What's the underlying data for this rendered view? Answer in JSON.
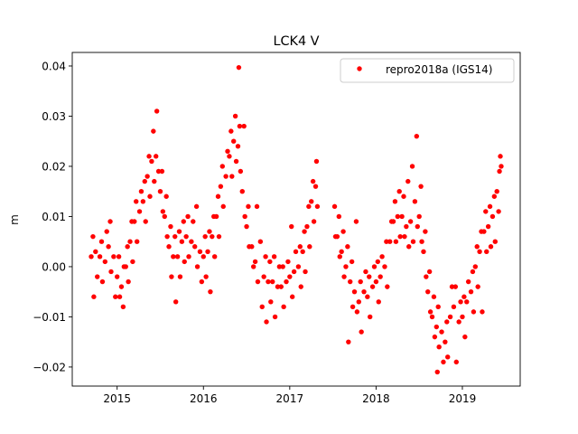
{
  "chart_data": {
    "type": "scatter",
    "title": "LCK4 V",
    "xlabel": "",
    "ylabel": "m",
    "xlim": [
      2014.48,
      2019.67
    ],
    "ylim": [
      -0.0238,
      0.0427
    ],
    "xticks": [
      2015,
      2016,
      2017,
      2018,
      2019
    ],
    "xtick_labels": [
      "2015",
      "2016",
      "2017",
      "2018",
      "2019"
    ],
    "yticks": [
      -0.02,
      -0.01,
      0.0,
      0.01,
      0.02,
      0.03,
      0.04
    ],
    "ytick_labels": [
      "−0.02",
      "−0.01",
      "0.00",
      "0.01",
      "0.02",
      "0.03",
      "0.04"
    ],
    "grid": false,
    "legend_position": "top-right",
    "series": [
      {
        "name": "repro2018a (IGS14)",
        "color": "#ff0000",
        "points": [
          [
            2014.7,
            0.002
          ],
          [
            2014.72,
            0.006
          ],
          [
            2014.73,
            -0.006
          ],
          [
            2014.75,
            0.003
          ],
          [
            2014.77,
            -0.002
          ],
          [
            2014.8,
            0.002
          ],
          [
            2014.82,
            0.005
          ],
          [
            2014.83,
            -0.003
          ],
          [
            2014.86,
            0.001
          ],
          [
            2014.88,
            0.007
          ],
          [
            2014.9,
            0.004
          ],
          [
            2014.92,
            0.009
          ],
          [
            2014.93,
            -0.001
          ],
          [
            2014.96,
            0.002
          ],
          [
            2014.98,
            -0.006
          ],
          [
            2015.0,
            -0.002
          ],
          [
            2015.02,
            0.002
          ],
          [
            2015.03,
            -0.006
          ],
          [
            2015.05,
            -0.004
          ],
          [
            2015.07,
            -0.008
          ],
          [
            2015.08,
            0.0
          ],
          [
            2015.1,
            0.0
          ],
          [
            2015.12,
            0.004
          ],
          [
            2015.13,
            -0.003
          ],
          [
            2015.15,
            0.005
          ],
          [
            2015.17,
            0.009
          ],
          [
            2015.18,
            0.001
          ],
          [
            2015.2,
            0.009
          ],
          [
            2015.22,
            0.013
          ],
          [
            2015.23,
            0.005
          ],
          [
            2015.26,
            0.011
          ],
          [
            2015.28,
            0.015
          ],
          [
            2015.3,
            0.013
          ],
          [
            2015.32,
            0.017
          ],
          [
            2015.33,
            0.009
          ],
          [
            2015.35,
            0.018
          ],
          [
            2015.37,
            0.022
          ],
          [
            2015.38,
            0.014
          ],
          [
            2015.4,
            0.021
          ],
          [
            2015.42,
            0.027
          ],
          [
            2015.43,
            0.017
          ],
          [
            2015.45,
            0.022
          ],
          [
            2015.46,
            0.031
          ],
          [
            2015.48,
            0.019
          ],
          [
            2015.5,
            0.015
          ],
          [
            2015.52,
            0.019
          ],
          [
            2015.53,
            0.011
          ],
          [
            2015.55,
            0.01
          ],
          [
            2015.57,
            0.014
          ],
          [
            2015.58,
            0.006
          ],
          [
            2015.6,
            0.004
          ],
          [
            2015.62,
            0.008
          ],
          [
            2015.63,
            -0.002
          ],
          [
            2015.65,
            0.002
          ],
          [
            2015.67,
            0.006
          ],
          [
            2015.68,
            -0.007
          ],
          [
            2015.7,
            0.002
          ],
          [
            2015.72,
            0.007
          ],
          [
            2015.73,
            -0.002
          ],
          [
            2015.75,
            0.005
          ],
          [
            2015.77,
            0.009
          ],
          [
            2015.78,
            0.001
          ],
          [
            2015.8,
            0.006
          ],
          [
            2015.82,
            0.01
          ],
          [
            2015.83,
            0.002
          ],
          [
            2015.86,
            0.005
          ],
          [
            2015.88,
            0.009
          ],
          [
            2015.9,
            0.004
          ],
          [
            2015.92,
            0.012
          ],
          [
            2015.93,
            0.0
          ],
          [
            2015.96,
            0.003
          ],
          [
            2015.98,
            -0.003
          ],
          [
            2016.0,
            0.002
          ],
          [
            2016.02,
            0.006
          ],
          [
            2016.03,
            -0.002
          ],
          [
            2016.05,
            0.003
          ],
          [
            2016.07,
            0.007
          ],
          [
            2016.08,
            -0.005
          ],
          [
            2016.1,
            0.006
          ],
          [
            2016.12,
            0.01
          ],
          [
            2016.13,
            0.002
          ],
          [
            2016.15,
            0.01
          ],
          [
            2016.17,
            0.014
          ],
          [
            2016.18,
            0.006
          ],
          [
            2016.2,
            0.016
          ],
          [
            2016.22,
            0.02
          ],
          [
            2016.23,
            0.012
          ],
          [
            2016.26,
            0.018
          ],
          [
            2016.28,
            0.023
          ],
          [
            2016.3,
            0.022
          ],
          [
            2016.32,
            0.027
          ],
          [
            2016.33,
            0.018
          ],
          [
            2016.35,
            0.025
          ],
          [
            2016.37,
            0.03
          ],
          [
            2016.38,
            0.021
          ],
          [
            2016.4,
            0.024
          ],
          [
            2016.41,
            0.0397
          ],
          [
            2016.42,
            0.028
          ],
          [
            2016.43,
            0.019
          ],
          [
            2016.45,
            0.015
          ],
          [
            2016.47,
            0.028
          ],
          [
            2016.48,
            0.01
          ],
          [
            2016.5,
            0.008
          ],
          [
            2016.52,
            0.012
          ],
          [
            2016.53,
            0.004
          ],
          [
            2016.56,
            0.004
          ],
          [
            2016.58,
            0.0
          ],
          [
            2016.6,
            0.001
          ],
          [
            2016.62,
            0.012
          ],
          [
            2016.63,
            -0.003
          ],
          [
            2016.66,
            0.005
          ],
          [
            2016.68,
            -0.008
          ],
          [
            2016.7,
            -0.002
          ],
          [
            2016.72,
            0.002
          ],
          [
            2016.73,
            -0.011
          ],
          [
            2016.75,
            -0.003
          ],
          [
            2016.77,
            0.001
          ],
          [
            2016.78,
            -0.007
          ],
          [
            2016.8,
            -0.003
          ],
          [
            2016.82,
            0.002
          ],
          [
            2016.83,
            -0.01
          ],
          [
            2016.86,
            -0.004
          ],
          [
            2016.88,
            0.0
          ],
          [
            2016.9,
            -0.004
          ],
          [
            2016.92,
            0.0
          ],
          [
            2016.93,
            -0.008
          ],
          [
            2016.96,
            -0.003
          ],
          [
            2016.98,
            0.001
          ],
          [
            2017.0,
            -0.002
          ],
          [
            2017.02,
            0.008
          ],
          [
            2017.03,
            -0.006
          ],
          [
            2017.05,
            -0.001
          ],
          [
            2017.07,
            0.003
          ],
          [
            2017.1,
            0.0
          ],
          [
            2017.12,
            0.004
          ],
          [
            2017.13,
            -0.004
          ],
          [
            2017.15,
            0.003
          ],
          [
            2017.17,
            0.007
          ],
          [
            2017.18,
            -0.001
          ],
          [
            2017.2,
            0.008
          ],
          [
            2017.22,
            0.012
          ],
          [
            2017.23,
            0.004
          ],
          [
            2017.25,
            0.013
          ],
          [
            2017.27,
            0.017
          ],
          [
            2017.28,
            0.009
          ],
          [
            2017.3,
            0.016
          ],
          [
            2017.31,
            0.021
          ],
          [
            2017.32,
            0.012
          ],
          [
            2017.52,
            0.012
          ],
          [
            2017.53,
            0.006
          ],
          [
            2017.55,
            0.006
          ],
          [
            2017.57,
            0.01
          ],
          [
            2017.58,
            0.002
          ],
          [
            2017.6,
            0.003
          ],
          [
            2017.62,
            0.007
          ],
          [
            2017.63,
            -0.002
          ],
          [
            2017.65,
            0.0
          ],
          [
            2017.67,
            0.004
          ],
          [
            2017.68,
            -0.015
          ],
          [
            2017.7,
            -0.003
          ],
          [
            2017.72,
            0.001
          ],
          [
            2017.73,
            -0.008
          ],
          [
            2017.75,
            -0.005
          ],
          [
            2017.77,
            0.009
          ],
          [
            2017.78,
            -0.009
          ],
          [
            2017.8,
            -0.007
          ],
          [
            2017.82,
            -0.003
          ],
          [
            2017.83,
            -0.013
          ],
          [
            2017.86,
            -0.005
          ],
          [
            2017.88,
            -0.001
          ],
          [
            2017.9,
            -0.006
          ],
          [
            2017.92,
            -0.002
          ],
          [
            2017.93,
            -0.01
          ],
          [
            2017.96,
            -0.004
          ],
          [
            2017.98,
            0.0
          ],
          [
            2018.0,
            -0.003
          ],
          [
            2018.02,
            0.001
          ],
          [
            2018.03,
            -0.007
          ],
          [
            2018.05,
            -0.002
          ],
          [
            2018.07,
            0.002
          ],
          [
            2018.1,
            0.0
          ],
          [
            2018.12,
            0.005
          ],
          [
            2018.13,
            -0.004
          ],
          [
            2018.16,
            0.005
          ],
          [
            2018.18,
            0.009
          ],
          [
            2018.2,
            0.009
          ],
          [
            2018.22,
            0.013
          ],
          [
            2018.23,
            0.005
          ],
          [
            2018.25,
            0.01
          ],
          [
            2018.27,
            0.015
          ],
          [
            2018.28,
            0.006
          ],
          [
            2018.3,
            0.01
          ],
          [
            2018.32,
            0.014
          ],
          [
            2018.33,
            0.006
          ],
          [
            2018.35,
            0.008
          ],
          [
            2018.37,
            0.017
          ],
          [
            2018.38,
            0.004
          ],
          [
            2018.4,
            0.009
          ],
          [
            2018.42,
            0.02
          ],
          [
            2018.43,
            0.005
          ],
          [
            2018.45,
            0.013
          ],
          [
            2018.47,
            0.026
          ],
          [
            2018.48,
            0.008
          ],
          [
            2018.5,
            0.01
          ],
          [
            2018.52,
            0.016
          ],
          [
            2018.53,
            0.005
          ],
          [
            2018.55,
            0.003
          ],
          [
            2018.57,
            0.007
          ],
          [
            2018.58,
            -0.002
          ],
          [
            2018.6,
            -0.005
          ],
          [
            2018.62,
            -0.001
          ],
          [
            2018.63,
            -0.009
          ],
          [
            2018.65,
            -0.01
          ],
          [
            2018.67,
            -0.006
          ],
          [
            2018.68,
            -0.014
          ],
          [
            2018.7,
            -0.012
          ],
          [
            2018.71,
            -0.021
          ],
          [
            2018.72,
            -0.008
          ],
          [
            2018.73,
            -0.016
          ],
          [
            2018.76,
            -0.013
          ],
          [
            2018.78,
            -0.019
          ],
          [
            2018.8,
            -0.015
          ],
          [
            2018.82,
            -0.011
          ],
          [
            2018.83,
            -0.018
          ],
          [
            2018.86,
            -0.01
          ],
          [
            2018.88,
            -0.004
          ],
          [
            2018.9,
            -0.008
          ],
          [
            2018.92,
            -0.004
          ],
          [
            2018.93,
            -0.019
          ],
          [
            2018.96,
            -0.011
          ],
          [
            2018.98,
            -0.007
          ],
          [
            2019.0,
            -0.01
          ],
          [
            2019.02,
            -0.006
          ],
          [
            2019.03,
            -0.014
          ],
          [
            2019.05,
            -0.007
          ],
          [
            2019.07,
            -0.003
          ],
          [
            2019.1,
            -0.005
          ],
          [
            2019.12,
            -0.001
          ],
          [
            2019.13,
            -0.009
          ],
          [
            2019.15,
            0.0
          ],
          [
            2019.17,
            0.004
          ],
          [
            2019.18,
            -0.004
          ],
          [
            2019.2,
            0.003
          ],
          [
            2019.22,
            0.007
          ],
          [
            2019.23,
            -0.009
          ],
          [
            2019.25,
            0.007
          ],
          [
            2019.27,
            0.011
          ],
          [
            2019.28,
            0.003
          ],
          [
            2019.3,
            0.008
          ],
          [
            2019.32,
            0.012
          ],
          [
            2019.33,
            0.004
          ],
          [
            2019.35,
            0.01
          ],
          [
            2019.37,
            0.014
          ],
          [
            2019.38,
            0.005
          ],
          [
            2019.4,
            0.015
          ],
          [
            2019.42,
            0.011
          ],
          [
            2019.43,
            0.019
          ],
          [
            2019.44,
            0.022
          ],
          [
            2019.45,
            0.02
          ]
        ]
      }
    ]
  }
}
